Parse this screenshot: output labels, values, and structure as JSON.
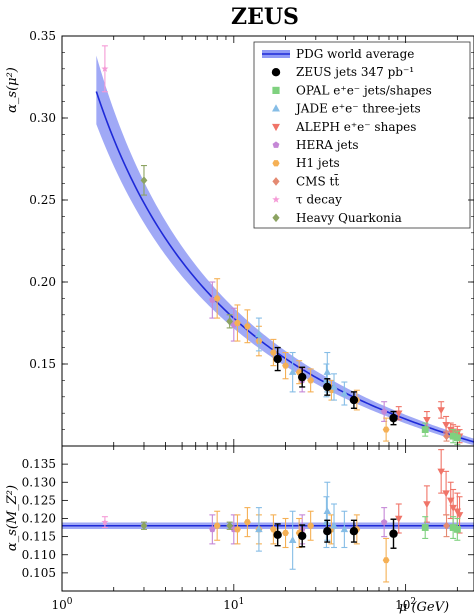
{
  "chart_data": {
    "title": "ZEUS",
    "type": "scatter",
    "x_scale": "log",
    "xlim": [
      1,
      250
    ],
    "xlabel": "μ (GeV)",
    "x_ticks": [
      {
        "value": 1,
        "label": "10^0"
      },
      {
        "value": 10,
        "label": "10^1"
      },
      {
        "value": 100,
        "label": "10^2"
      }
    ],
    "top_panel": {
      "ylabel": "α_s(μ²)",
      "ylim": [
        0.1,
        0.35
      ],
      "y_ticks": [
        0.15,
        0.2,
        0.25,
        0.3,
        0.35
      ],
      "y_tick_labels": [
        "0.15",
        "0.20",
        "0.25",
        "0.30",
        "0.35"
      ]
    },
    "bottom_panel": {
      "ylabel": "α_s(M_Z²)",
      "ylim": [
        0.1,
        0.14
      ],
      "y_ticks": [
        0.105,
        0.11,
        0.115,
        0.12,
        0.125,
        0.13,
        0.135
      ],
      "y_tick_labels": [
        "0.105",
        "0.110",
        "0.115",
        "0.120",
        "0.125",
        "0.130",
        "0.135"
      ]
    },
    "world_average": {
      "alpha_mz": 0.118,
      "uncertainty": 0.0009,
      "mz": 91.19
    },
    "legend": [
      {
        "name": "PDG world average",
        "marker": "band",
        "color": "#3344ee"
      },
      {
        "name": "ZEUS jets 347 pb⁻¹",
        "marker": "circle",
        "color": "#000000"
      },
      {
        "name": "OPAL e⁺e⁻ jets/shapes",
        "marker": "square",
        "color": "#7fd17f"
      },
      {
        "name": "JADE e⁺e⁻ three-jets",
        "marker": "triangle-up",
        "color": "#86bde6"
      },
      {
        "name": "ALEPH e⁺e⁻ shapes",
        "marker": "triangle-down",
        "color": "#f07468"
      },
      {
        "name": "HERA jets",
        "marker": "pentagon",
        "color": "#c587d6"
      },
      {
        "name": "H1 jets",
        "marker": "hexagon",
        "color": "#f5b055"
      },
      {
        "name": "CMS tt̄",
        "marker": "diamond",
        "color": "#e48a72"
      },
      {
        "name": "τ decay",
        "marker": "star",
        "color": "#f59ad6"
      },
      {
        "name": "Heavy Quarkonia",
        "marker": "diamond",
        "color": "#8ca361"
      }
    ],
    "series": [
      {
        "name": "ZEUS jets 347 pb⁻¹",
        "marker": "circle",
        "color": "#000000",
        "points": [
          {
            "mu": 18.0,
            "alpha_mu": 0.153,
            "err_mu": 0.007,
            "alpha_mz": 0.1155,
            "err_mz": 0.003
          },
          {
            "mu": 25.0,
            "alpha_mu": 0.142,
            "err_mu": 0.006,
            "alpha_mz": 0.1152,
            "err_mz": 0.003
          },
          {
            "mu": 35.0,
            "alpha_mu": 0.136,
            "err_mu": 0.005,
            "alpha_mz": 0.1165,
            "err_mz": 0.003
          },
          {
            "mu": 50.0,
            "alpha_mu": 0.128,
            "err_mu": 0.005,
            "alpha_mz": 0.1165,
            "err_mz": 0.003
          },
          {
            "mu": 85.0,
            "alpha_mu": 0.117,
            "err_mu": 0.004,
            "alpha_mz": 0.1158,
            "err_mz": 0.004
          }
        ]
      },
      {
        "name": "OPAL e⁺e⁻ jets/shapes",
        "marker": "square",
        "color": "#7fd17f",
        "points": [
          {
            "mu": 130,
            "alpha_mu": 0.11,
            "err_mu": 0.004,
            "alpha_mz": 0.1175,
            "err_mz": 0.003
          },
          {
            "mu": 189,
            "alpha_mu": 0.106,
            "err_mu": 0.004,
            "alpha_mz": 0.1175,
            "err_mz": 0.003
          },
          {
            "mu": 200,
            "alpha_mu": 0.105,
            "err_mu": 0.004,
            "alpha_mz": 0.117,
            "err_mz": 0.003
          }
        ]
      },
      {
        "name": "JADE e⁺e⁻ three-jets",
        "marker": "triangle-up",
        "color": "#86bde6",
        "points": [
          {
            "mu": 14.0,
            "alpha_mu": 0.168,
            "err_mu": 0.01,
            "alpha_mz": 0.117,
            "err_mz": 0.006
          },
          {
            "mu": 22.0,
            "alpha_mu": 0.145,
            "err_mu": 0.012,
            "alpha_mz": 0.114,
            "err_mz": 0.008
          },
          {
            "mu": 34.6,
            "alpha_mu": 0.14,
            "err_mu": 0.01,
            "alpha_mz": 0.119,
            "err_mz": 0.007
          },
          {
            "mu": 35.0,
            "alpha_mu": 0.145,
            "err_mu": 0.012,
            "alpha_mz": 0.122,
            "err_mz": 0.008
          },
          {
            "mu": 38.3,
            "alpha_mu": 0.136,
            "err_mu": 0.008,
            "alpha_mz": 0.118,
            "err_mz": 0.006
          },
          {
            "mu": 44.0,
            "alpha_mu": 0.132,
            "err_mu": 0.007,
            "alpha_mz": 0.117,
            "err_mz": 0.005
          }
        ]
      },
      {
        "name": "ALEPH e⁺e⁻ shapes",
        "marker": "triangle-down",
        "color": "#f07468",
        "points": [
          {
            "mu": 91.2,
            "alpha_mu": 0.12,
            "err_mu": 0.004,
            "alpha_mz": 0.12,
            "err_mz": 0.004
          },
          {
            "mu": 133,
            "alpha_mu": 0.116,
            "err_mu": 0.005,
            "alpha_mz": 0.124,
            "err_mz": 0.005
          },
          {
            "mu": 161,
            "alpha_mu": 0.122,
            "err_mu": 0.005,
            "alpha_mz": 0.133,
            "err_mz": 0.006
          },
          {
            "mu": 172,
            "alpha_mu": 0.113,
            "err_mu": 0.005,
            "alpha_mz": 0.127,
            "err_mz": 0.006
          },
          {
            "mu": 183,
            "alpha_mu": 0.11,
            "err_mu": 0.004,
            "alpha_mz": 0.125,
            "err_mz": 0.005
          },
          {
            "mu": 189,
            "alpha_mu": 0.109,
            "err_mu": 0.004,
            "alpha_mz": 0.123,
            "err_mz": 0.005
          },
          {
            "mu": 200,
            "alpha_mu": 0.108,
            "err_mu": 0.004,
            "alpha_mz": 0.122,
            "err_mz": 0.005
          },
          {
            "mu": 206,
            "alpha_mu": 0.106,
            "err_mu": 0.004,
            "alpha_mz": 0.121,
            "err_mz": 0.005
          }
        ]
      },
      {
        "name": "HERA jets",
        "marker": "pentagon",
        "color": "#c587d6",
        "points": [
          {
            "mu": 7.5,
            "alpha_mu": 0.189,
            "err_mu": 0.011,
            "alpha_mz": 0.117,
            "err_mz": 0.004
          },
          {
            "mu": 10.0,
            "alpha_mu": 0.174,
            "err_mu": 0.01,
            "alpha_mz": 0.117,
            "err_mz": 0.004
          },
          {
            "mu": 25.0,
            "alpha_mu": 0.14,
            "err_mu": 0.007,
            "alpha_mz": 0.117,
            "err_mz": 0.004
          },
          {
            "mu": 75.0,
            "alpha_mu": 0.121,
            "err_mu": 0.006,
            "alpha_mz": 0.119,
            "err_mz": 0.004
          }
        ]
      },
      {
        "name": "H1 jets",
        "marker": "hexagon",
        "color": "#f5b055",
        "points": [
          {
            "mu": 8.0,
            "alpha_mu": 0.19,
            "err_mu": 0.012,
            "alpha_mz": 0.118,
            "err_mz": 0.004
          },
          {
            "mu": 10.5,
            "alpha_mu": 0.175,
            "err_mu": 0.011,
            "alpha_mz": 0.117,
            "err_mz": 0.004
          },
          {
            "mu": 12.0,
            "alpha_mu": 0.173,
            "err_mu": 0.01,
            "alpha_mz": 0.119,
            "err_mz": 0.004
          },
          {
            "mu": 14.0,
            "alpha_mu": 0.164,
            "err_mu": 0.009,
            "alpha_mz": 0.117,
            "err_mz": 0.004
          },
          {
            "mu": 17.0,
            "alpha_mu": 0.157,
            "err_mu": 0.008,
            "alpha_mz": 0.117,
            "err_mz": 0.004
          },
          {
            "mu": 20.0,
            "alpha_mu": 0.149,
            "err_mu": 0.008,
            "alpha_mz": 0.116,
            "err_mz": 0.004
          },
          {
            "mu": 24.0,
            "alpha_mu": 0.145,
            "err_mu": 0.007,
            "alpha_mz": 0.116,
            "err_mz": 0.004
          },
          {
            "mu": 28.0,
            "alpha_mu": 0.14,
            "err_mu": 0.007,
            "alpha_mz": 0.118,
            "err_mz": 0.004
          },
          {
            "mu": 37.0,
            "alpha_mu": 0.134,
            "err_mu": 0.006,
            "alpha_mz": 0.117,
            "err_mz": 0.004
          },
          {
            "mu": 52.0,
            "alpha_mu": 0.128,
            "err_mu": 0.006,
            "alpha_mz": 0.117,
            "err_mz": 0.004
          },
          {
            "mu": 77.0,
            "alpha_mu": 0.11,
            "err_mu": 0.007,
            "alpha_mz": 0.1085,
            "err_mz": 0.006
          }
        ]
      },
      {
        "name": "CMS tt̄",
        "marker": "diamond",
        "color": "#e48a72",
        "points": [
          {
            "mu": 173,
            "alpha_mu": 0.106,
            "err_mu": 0.003,
            "alpha_mz": 0.118,
            "err_mz": 0.003
          }
        ]
      },
      {
        "name": "τ decay",
        "marker": "star",
        "color": "#f59ad6",
        "points": [
          {
            "mu": 1.777,
            "alpha_mu": 0.33,
            "err_mu": 0.014,
            "alpha_mz": 0.119,
            "err_mz": 0.0015
          }
        ]
      },
      {
        "name": "Heavy Quarkonia",
        "marker": "diamond",
        "color": "#8ca361",
        "points": [
          {
            "mu": 3.0,
            "alpha_mu": 0.262,
            "err_mu": 0.009,
            "alpha_mz": 0.118,
            "err_mz": 0.001
          },
          {
            "mu": 9.46,
            "alpha_mu": 0.176,
            "err_mu": 0.004,
            "alpha_mz": 0.118,
            "err_mz": 0.001
          }
        ]
      }
    ]
  }
}
